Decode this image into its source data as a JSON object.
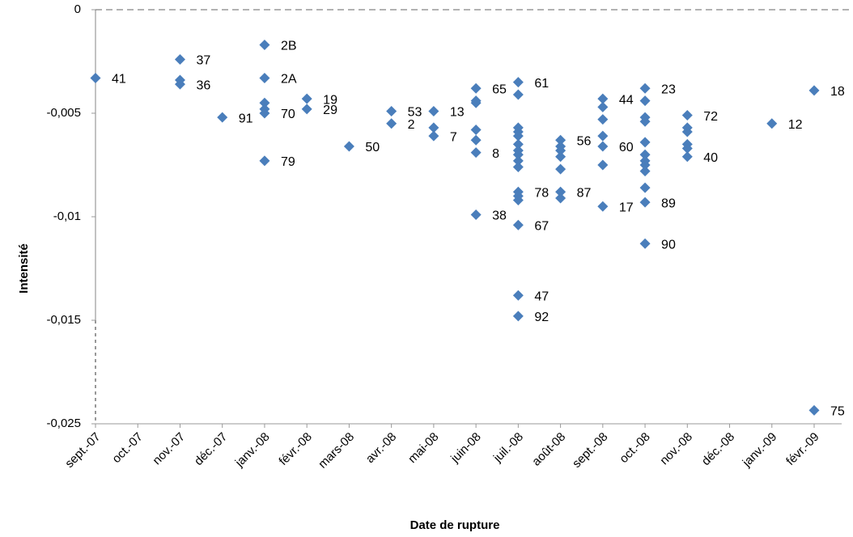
{
  "chart_data": {
    "type": "scatter",
    "x_label": "Date de rupture",
    "y_label": "Intensité",
    "categories": [
      "sept.-07",
      "oct.-07",
      "nov.-07",
      "déc.-07",
      "janv.-08",
      "févr.-08",
      "mars-08",
      "avr.-08",
      "mai-08",
      "juin-08",
      "juil.-08",
      "août-08",
      "sept.-08",
      "oct.-08",
      "nov.-08",
      "déc.-08",
      "janv.-09",
      "févr.-09"
    ],
    "yticks": [
      0,
      {
        "value": -0.005,
        "label": "-0,005"
      },
      {
        "value": -0.01,
        "label": "-0,01"
      },
      {
        "value": -0.015,
        "label": "-0,015"
      },
      {
        "value": -0.025,
        "label": "-0,025"
      }
    ],
    "color": "#4a7ebb",
    "x": [
      "sept.-07",
      "nov.-07",
      "nov.-07",
      "nov.-07",
      "déc.-07",
      "janv.-08",
      "janv.-08",
      "janv.-08",
      "janv.-08",
      "janv.-08",
      "janv.-08",
      "févr.-08",
      "févr.-08",
      "mars-08",
      "avr.-08",
      "avr.-08",
      "mai-08",
      "mai-08",
      "mai-08",
      "juin-08",
      "juin-08",
      "juin-08",
      "juin-08",
      "juin-08",
      "juin-08",
      "juin-08",
      "juil.-08",
      "juil.-08",
      "juil.-08",
      "juil.-08",
      "juil.-08",
      "juil.-08",
      "juil.-08",
      "juil.-08",
      "juil.-08",
      "juil.-08",
      "juil.-08",
      "juil.-08",
      "juil.-08",
      "juil.-08",
      "juil.-08",
      "juil.-08",
      "août-08",
      "août-08",
      "août-08",
      "août-08",
      "août-08",
      "août-08",
      "août-08",
      "sept.-08",
      "sept.-08",
      "sept.-08",
      "sept.-08",
      "sept.-08",
      "sept.-08",
      "sept.-08",
      "oct.-08",
      "oct.-08",
      "oct.-08",
      "oct.-08",
      "oct.-08",
      "oct.-08",
      "oct.-08",
      "oct.-08",
      "oct.-08",
      "oct.-08",
      "oct.-08",
      "oct.-08",
      "nov.-08",
      "nov.-08",
      "nov.-08",
      "nov.-08",
      "nov.-08",
      "nov.-08",
      "janv.-09",
      "févr.-09",
      "févr.-09"
    ],
    "values": [
      -0.0033,
      -0.0024,
      -0.0034,
      -0.0036,
      -0.0052,
      -0.0017,
      -0.0033,
      -0.0045,
      -0.0048,
      -0.005,
      -0.0073,
      -0.0043,
      -0.0048,
      -0.0066,
      -0.0049,
      -0.0055,
      -0.0049,
      -0.0057,
      -0.0061,
      -0.0038,
      -0.0044,
      -0.0045,
      -0.0058,
      -0.0063,
      -0.0069,
      -0.0099,
      -0.0035,
      -0.0041,
      -0.0057,
      -0.0059,
      -0.0061,
      -0.0065,
      -0.0068,
      -0.007,
      -0.0073,
      -0.0076,
      -0.0088,
      -0.009,
      -0.0092,
      -0.0104,
      -0.0138,
      -0.0148,
      -0.0063,
      -0.0066,
      -0.0068,
      -0.0071,
      -0.0077,
      -0.0088,
      -0.0091,
      -0.0043,
      -0.0047,
      -0.0053,
      -0.0061,
      -0.0066,
      -0.0075,
      -0.0095,
      -0.0038,
      -0.0044,
      -0.0052,
      -0.0054,
      -0.0064,
      -0.007,
      -0.0073,
      -0.0075,
      -0.0078,
      -0.0086,
      -0.0093,
      -0.0113,
      -0.0051,
      -0.0057,
      -0.0059,
      -0.0065,
      -0.0067,
      -0.0071,
      -0.0055,
      -0.0039,
      -0.0237
    ],
    "point_labels": [
      "41",
      "37",
      null,
      "36",
      "91",
      "2B",
      "2A",
      null,
      null,
      "70",
      "79",
      "19",
      "29",
      "50",
      "53",
      "2",
      "13",
      null,
      "7",
      "65",
      null,
      null,
      null,
      null,
      "8",
      "38",
      "61",
      null,
      null,
      null,
      null,
      null,
      null,
      null,
      null,
      null,
      "78",
      null,
      null,
      "67",
      "47",
      "92",
      "56",
      null,
      null,
      null,
      null,
      "87",
      null,
      "44",
      null,
      null,
      null,
      "60",
      null,
      "17",
      "23",
      null,
      null,
      null,
      null,
      null,
      null,
      null,
      null,
      null,
      "89",
      "90",
      "72",
      null,
      null,
      null,
      null,
      "40",
      "12",
      "18",
      "75"
    ]
  }
}
